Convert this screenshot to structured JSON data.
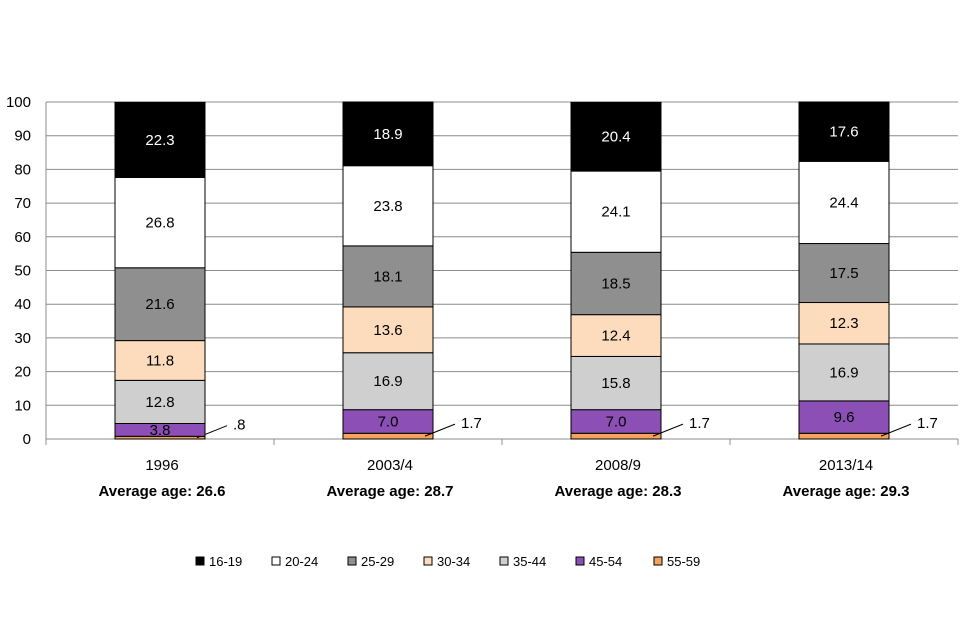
{
  "chart_data": {
    "type": "bar",
    "stacked": true,
    "title": "",
    "xlabel": "",
    "ylabel": "",
    "ylim": [
      0,
      100
    ],
    "yticks": [
      0,
      10,
      20,
      30,
      40,
      50,
      60,
      70,
      80,
      90,
      100
    ],
    "categories": [
      "1996",
      "2003/4",
      "2008/9",
      "2013/14"
    ],
    "averages": [
      "Average age: 26.6",
      "Average age: 28.7",
      "Average age: 28.3",
      "Average age: 29.3"
    ],
    "series": [
      {
        "name": "55-59",
        "color": "#f5a25d",
        "values": [
          0.8,
          1.7,
          1.7,
          1.7
        ],
        "labels": [
          ".8",
          "1.7",
          "1.7",
          "1.7"
        ],
        "label_style": "callout"
      },
      {
        "name": "45-54",
        "color": "#8b4fb5",
        "values": [
          3.8,
          7.0,
          7.0,
          9.6
        ],
        "labels": [
          "3.8",
          "7.0",
          "7.0",
          "9.6"
        ],
        "label_style": "inside-dark"
      },
      {
        "name": "35-44",
        "color": "#cfcfcf",
        "values": [
          12.8,
          16.9,
          15.8,
          16.9
        ],
        "labels": [
          "12.8",
          "16.9",
          "15.8",
          "16.9"
        ],
        "label_style": "inside-dark"
      },
      {
        "name": "30-34",
        "color": "#fddbbd",
        "values": [
          11.8,
          13.6,
          12.4,
          12.3
        ],
        "labels": [
          "11.8",
          "13.6",
          "12.4",
          "12.3"
        ],
        "label_style": "inside-dark"
      },
      {
        "name": "25-29",
        "color": "#8f8f8f",
        "values": [
          21.6,
          18.1,
          18.5,
          17.5
        ],
        "labels": [
          "21.6",
          "18.1",
          "18.5",
          "17.5"
        ],
        "label_style": "inside-dark"
      },
      {
        "name": "20-24",
        "color": "#ffffff",
        "values": [
          26.8,
          23.8,
          24.1,
          24.4
        ],
        "labels": [
          "26.8",
          "23.8",
          "24.1",
          "24.4"
        ],
        "label_style": "inside-dark"
      },
      {
        "name": "16-19",
        "color": "#000000",
        "values": [
          22.3,
          18.9,
          20.4,
          17.6
        ],
        "labels": [
          "22.3",
          "18.9",
          "20.4",
          "17.6"
        ],
        "label_style": "inside-light"
      }
    ],
    "legend": {
      "position": "bottom",
      "order": [
        "16-19",
        "20-24",
        "25-29",
        "30-34",
        "35-44",
        "45-54",
        "55-59"
      ]
    },
    "grid": true
  }
}
